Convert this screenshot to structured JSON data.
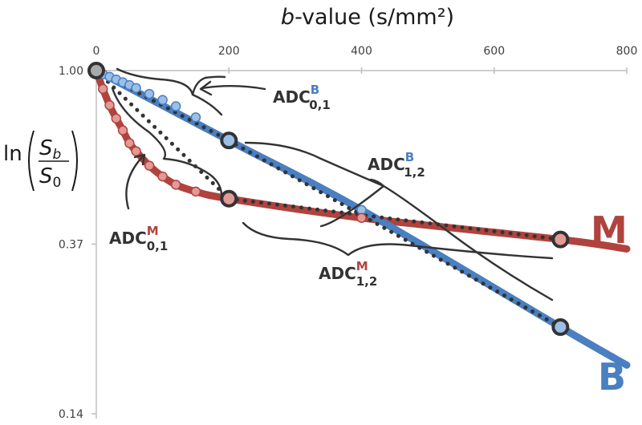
{
  "chart_data": {
    "type": "line",
    "title": "",
    "xlabel_italic": "b",
    "xlabel_rest": "-value (s/mm²)",
    "ylabel": {
      "ln": "ln",
      "num": "S",
      "num_sub": "b",
      "den": "S",
      "den_sub": "0"
    },
    "xlim": [
      0,
      800
    ],
    "x_ticks": [
      {
        "value": 0,
        "label": "0"
      },
      {
        "value": 200,
        "label": "200"
      },
      {
        "value": 400,
        "label": "400"
      },
      {
        "value": 600,
        "label": "600"
      },
      {
        "value": 800,
        "label": "800"
      }
    ],
    "ylim": [
      0.14,
      1.0
    ],
    "y_scale": "log",
    "y_ticks": [
      {
        "value": 1.0,
        "label": "1.00"
      },
      {
        "value": 0.37,
        "label": "0.37"
      },
      {
        "value": 0.14,
        "label": "0.14"
      }
    ],
    "series": [
      {
        "name": "B",
        "color": "#4a7fc1",
        "point_color": "#9bbfe6",
        "curve": {
          "x": [
            0,
            200,
            400,
            700,
            800
          ],
          "y": [
            1.0,
            0.67,
            0.45,
            0.23,
            0.185
          ]
        },
        "points": {
          "x": [
            0,
            10,
            20,
            30,
            40,
            50,
            60,
            80,
            100,
            120,
            150,
            200,
            400
          ],
          "y": [
            1.0,
            0.98,
            0.965,
            0.95,
            0.935,
            0.92,
            0.905,
            0.875,
            0.845,
            0.815,
            0.765,
            0.67,
            0.45
          ]
        }
      },
      {
        "name": "M",
        "color": "#b0433e",
        "point_color": "#e29a96",
        "curve": {
          "x": [
            0,
            10,
            20,
            30,
            40,
            50,
            60,
            80,
            100,
            120,
            150,
            200,
            400,
            700,
            800
          ],
          "y": [
            1.0,
            0.9,
            0.82,
            0.76,
            0.71,
            0.66,
            0.63,
            0.58,
            0.545,
            0.52,
            0.5,
            0.48,
            0.43,
            0.38,
            0.36
          ]
        },
        "points": {
          "x": [
            0,
            10,
            20,
            30,
            40,
            50,
            60,
            80,
            100,
            120,
            150,
            200,
            400,
            700
          ],
          "y": [
            1.0,
            0.9,
            0.82,
            0.76,
            0.71,
            0.66,
            0.63,
            0.58,
            0.545,
            0.52,
            0.5,
            0.48,
            0.43,
            0.38
          ]
        }
      }
    ],
    "fits": [
      {
        "name": "ADC0,1 B",
        "x": [
          0,
          200
        ],
        "y": [
          1.0,
          0.67
        ]
      },
      {
        "name": "ADC1,2 B",
        "x": [
          200,
          700
        ],
        "y": [
          0.67,
          0.23
        ]
      },
      {
        "name": "ADC0,1 M",
        "x": [
          0,
          200
        ],
        "y": [
          1.0,
          0.48
        ]
      },
      {
        "name": "ADC1,2 M",
        "x": [
          200,
          700
        ],
        "y": [
          0.48,
          0.38
        ]
      }
    ],
    "highlight_points": [
      {
        "x": 0,
        "y": 1.0,
        "series": "B"
      },
      {
        "x": 200,
        "y": 0.67,
        "series": "B"
      },
      {
        "x": 700,
        "y": 0.23,
        "series": "B"
      },
      {
        "x": 200,
        "y": 0.48,
        "series": "M"
      },
      {
        "x": 700,
        "y": 0.38,
        "series": "M"
      }
    ],
    "annotations": [
      {
        "id": "adc01b",
        "base": "ADC",
        "sub": "0,1",
        "sup": "B",
        "sup_color": "#4a7fc1"
      },
      {
        "id": "adc12b",
        "base": "ADC",
        "sub": "1,2",
        "sup": "B",
        "sup_color": "#4a7fc1"
      },
      {
        "id": "adc01m",
        "base": "ADC",
        "sub": "0,1",
        "sup": "M",
        "sup_color": "#b0433e"
      },
      {
        "id": "adc12m",
        "base": "ADC",
        "sub": "1,2",
        "sup": "M",
        "sup_color": "#b0433e"
      }
    ],
    "series_labels": [
      {
        "text": "M",
        "color": "#b0433e"
      },
      {
        "text": "B",
        "color": "#4a7fc1"
      }
    ]
  }
}
